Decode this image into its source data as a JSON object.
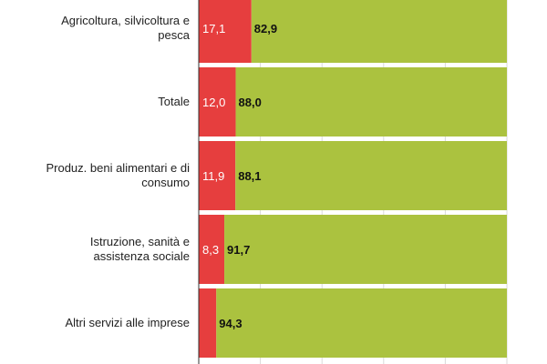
{
  "chart_data": {
    "type": "bar",
    "orientation": "horizontal",
    "stacked": true,
    "xlim": [
      0,
      100
    ],
    "grid": true,
    "colors": {
      "red": "#e63e3e",
      "green": "#abc23f"
    },
    "categories": [
      "",
      "Agricoltura, silvicoltura e pesca",
      "Totale",
      "Produz. beni alimentari e di consumo",
      "Istruzione, sanità e assistenza sociale",
      "Altri servizi alle imprese"
    ],
    "category_lines": [
      [],
      [
        "Agricoltura, silvicoltura e",
        "pesca"
      ],
      [
        "Totale"
      ],
      [
        "Produz. beni alimentari e di",
        "consumo"
      ],
      [
        "Istruzione, sanità e",
        "assistenza sociale"
      ],
      [
        "Altri servizi alle imprese"
      ]
    ],
    "series": [
      {
        "color": "#e63e3e",
        "values": [
          17.5,
          17.1,
          12.0,
          11.9,
          8.3,
          5.7
        ],
        "labels": [
          "",
          "17,1",
          "12,0",
          "11,9",
          "8,3",
          ""
        ]
      },
      {
        "color": "#abc23f",
        "values": [
          82.5,
          82.9,
          88.0,
          88.1,
          91.7,
          94.3
        ],
        "labels": [
          "",
          "82,9",
          "88,0",
          "88,1",
          "91,7",
          "94,3"
        ]
      }
    ]
  }
}
